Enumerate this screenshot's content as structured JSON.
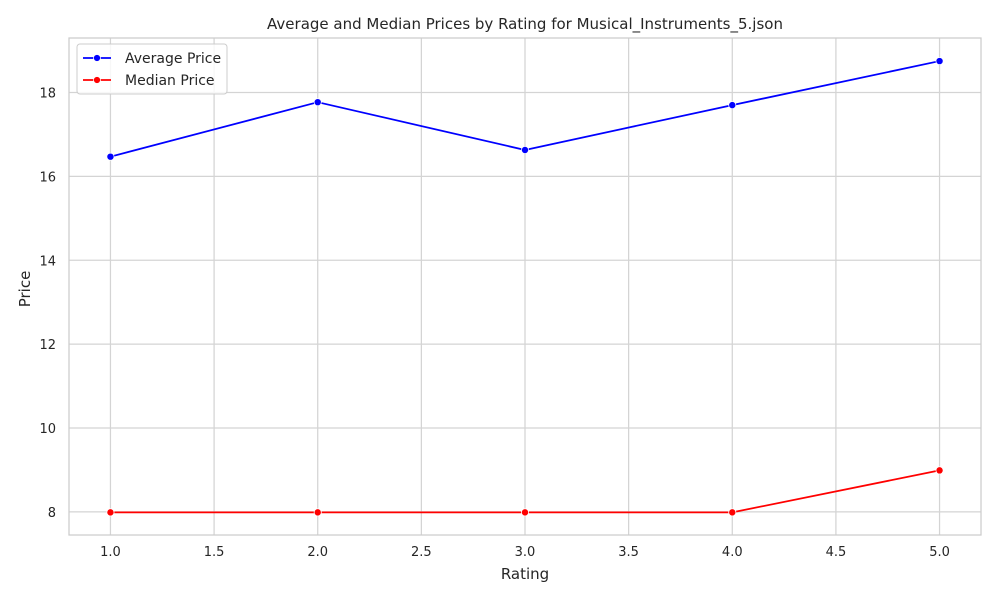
{
  "chart_data": {
    "type": "line",
    "title": "Average and Median Prices by Rating for Musical_Instruments_5.json",
    "xlabel": "Rating",
    "ylabel": "Price",
    "x": [
      1.0,
      2.0,
      3.0,
      4.0,
      5.0
    ],
    "xlim": [
      0.8,
      5.2
    ],
    "ylim": [
      7.45,
      19.3
    ],
    "x_ticks": [
      1.0,
      1.5,
      2.0,
      2.5,
      3.0,
      3.5,
      4.0,
      4.5,
      5.0
    ],
    "x_tick_labels": [
      "1.0",
      "1.5",
      "2.0",
      "2.5",
      "3.0",
      "3.5",
      "4.0",
      "4.5",
      "5.0"
    ],
    "y_ticks": [
      8,
      10,
      12,
      14,
      16,
      18
    ],
    "y_tick_labels": [
      "8",
      "10",
      "12",
      "14",
      "16",
      "18"
    ],
    "grid": true,
    "legend_position": "top-left",
    "series": [
      {
        "name": "Average Price",
        "color": "#0000ff",
        "marker": "circle",
        "values": [
          16.47,
          17.77,
          16.63,
          17.7,
          18.75
        ]
      },
      {
        "name": "Median Price",
        "color": "#ff0000",
        "marker": "circle",
        "values": [
          7.99,
          7.99,
          7.99,
          7.99,
          8.99
        ]
      }
    ]
  }
}
